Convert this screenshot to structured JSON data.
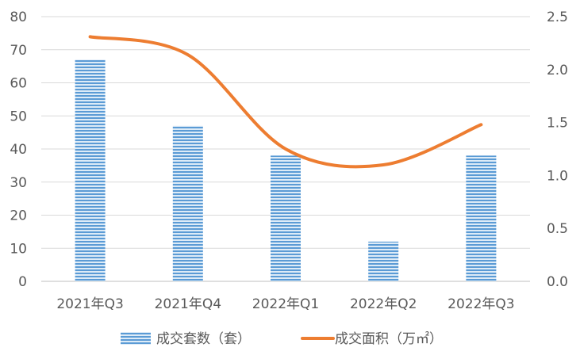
{
  "chart_data": {
    "type": "bar+line",
    "categories": [
      "2021年Q3",
      "2021年Q4",
      "2022年Q1",
      "2022年Q2",
      "2022年Q3"
    ],
    "series": [
      {
        "name": "成交套数（套）",
        "type": "bar",
        "axis": "left",
        "values": [
          67,
          47,
          38,
          12,
          38
        ],
        "color": "#5B9BD5"
      },
      {
        "name": "成交面积（万㎡）",
        "type": "line",
        "axis": "right",
        "values": [
          2.31,
          2.14,
          1.25,
          1.1,
          1.48
        ],
        "color": "#ED7D31"
      }
    ],
    "y_left": {
      "ylim": [
        0,
        80
      ],
      "ticks": [
        "0",
        "10",
        "20",
        "30",
        "40",
        "50",
        "60",
        "70",
        "80"
      ]
    },
    "y_right": {
      "ylim": [
        0,
        2.5
      ],
      "ticks": [
        "0.0",
        "0.5",
        "1.0",
        "1.5",
        "2.0",
        "2.5"
      ]
    },
    "grid": true,
    "legend_position": "bottom"
  }
}
